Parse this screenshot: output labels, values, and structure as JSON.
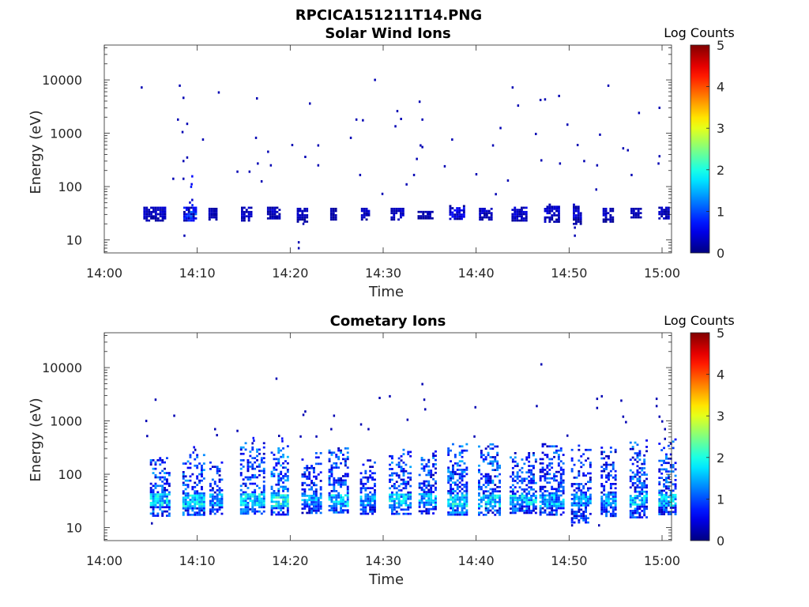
{
  "figure_title": "RPCICA151211T14.PNG",
  "colorbar": {
    "title": "Log Counts",
    "ticks": [
      "0",
      "1",
      "2",
      "3",
      "4",
      "5"
    ],
    "range": [
      0,
      5
    ],
    "colormap": "jet"
  },
  "chart_data": [
    {
      "type": "heatmap",
      "title": "Solar Wind Ions",
      "xlabel": "Time",
      "ylabel": "Energy (eV)",
      "xticks": [
        "14:00",
        "14:10",
        "14:20",
        "14:30",
        "14:40",
        "14:50",
        "15:00"
      ],
      "xlim_minutes": [
        0,
        60.5
      ],
      "yticks": [
        "10",
        "100",
        "1000",
        "10000"
      ],
      "ylim": [
        5.7,
        45000
      ],
      "yscale": "log",
      "grid": false,
      "bursts": [
        {
          "t": 4.2,
          "w": 2.4,
          "e_lo": 23,
          "e_hi": 42,
          "c": 0.3,
          "spread": 0.15,
          "tail": 0
        },
        {
          "t": 8.5,
          "w": 1.3,
          "e_lo": 23,
          "e_hi": 42,
          "c": 0.6,
          "spread": 0.6,
          "tail": 170
        },
        {
          "t": 11.2,
          "w": 0.9,
          "e_lo": 25,
          "e_hi": 40,
          "c": 0.25,
          "spread": 0.1,
          "tail": 0
        },
        {
          "t": 14.7,
          "w": 1.2,
          "e_lo": 24,
          "e_hi": 42,
          "c": 0.3,
          "spread": 0.15,
          "tail": 0
        },
        {
          "t": 17.5,
          "w": 1.4,
          "e_lo": 25,
          "e_hi": 42,
          "c": 0.3,
          "spread": 0.2,
          "tail": 0
        },
        {
          "t": 20.7,
          "w": 1.2,
          "e_lo": 22,
          "e_hi": 40,
          "c": 0.3,
          "spread": 0.1,
          "tail": 0
        },
        {
          "t": 24.3,
          "w": 0.6,
          "e_lo": 25,
          "e_hi": 40,
          "c": 0.2,
          "spread": 0.1,
          "tail": 0
        },
        {
          "t": 27.6,
          "w": 0.9,
          "e_lo": 24,
          "e_hi": 40,
          "c": 0.3,
          "spread": 0.15,
          "tail": 0
        },
        {
          "t": 30.8,
          "w": 1.4,
          "e_lo": 24,
          "e_hi": 40,
          "c": 0.3,
          "spread": 0.15,
          "tail": 0
        },
        {
          "t": 33.7,
          "w": 1.5,
          "e_lo": 25,
          "e_hi": 35,
          "c": 0.2,
          "spread": 0.1,
          "tail": 0
        },
        {
          "t": 37.1,
          "w": 1.6,
          "e_lo": 24,
          "e_hi": 45,
          "c": 0.45,
          "spread": 0.3,
          "tail": 0
        },
        {
          "t": 40.3,
          "w": 1.3,
          "e_lo": 24,
          "e_hi": 40,
          "c": 0.35,
          "spread": 0.2,
          "tail": 0
        },
        {
          "t": 43.8,
          "w": 1.5,
          "e_lo": 23,
          "e_hi": 42,
          "c": 0.35,
          "spread": 0.2,
          "tail": 0
        },
        {
          "t": 47.3,
          "w": 1.6,
          "e_lo": 22,
          "e_hi": 48,
          "c": 0.35,
          "spread": 0.2,
          "tail": 0
        },
        {
          "t": 50.4,
          "w": 0.8,
          "e_lo": 20,
          "e_hi": 48,
          "c": 0.35,
          "spread": 0.2,
          "tail": 0
        },
        {
          "t": 53.6,
          "w": 1.1,
          "e_lo": 22,
          "e_hi": 40,
          "c": 0.3,
          "spread": 0.15,
          "tail": 0
        },
        {
          "t": 56.6,
          "w": 1.0,
          "e_lo": 26,
          "e_hi": 40,
          "c": 0.25,
          "spread": 0.1,
          "tail": 0
        },
        {
          "t": 59.6,
          "w": 1.0,
          "e_lo": 26,
          "e_hi": 42,
          "c": 0.3,
          "spread": 0.15,
          "tail": 0
        }
      ],
      "dots": [
        [
          4.0,
          7200
        ],
        [
          8.1,
          7800
        ],
        [
          8.5,
          4600
        ],
        [
          7.9,
          1800
        ],
        [
          8.9,
          1500
        ],
        [
          8.4,
          1050
        ],
        [
          10.6,
          760
        ],
        [
          12.3,
          5800
        ],
        [
          8.9,
          350
        ],
        [
          8.5,
          300
        ],
        [
          7.4,
          140
        ],
        [
          8.5,
          140
        ],
        [
          14.3,
          190
        ],
        [
          16.4,
          4500
        ],
        [
          16.3,
          820
        ],
        [
          15.6,
          190
        ],
        [
          17.6,
          450
        ],
        [
          16.5,
          270
        ],
        [
          17.9,
          250
        ],
        [
          16.9,
          125
        ],
        [
          20.2,
          600
        ],
        [
          22.1,
          3600
        ],
        [
          21.6,
          360
        ],
        [
          23.0,
          590
        ],
        [
          23.0,
          250
        ],
        [
          26.5,
          820
        ],
        [
          27.1,
          1800
        ],
        [
          27.8,
          1750
        ],
        [
          27.5,
          165
        ],
        [
          29.1,
          10000
        ],
        [
          31.5,
          2600
        ],
        [
          31.9,
          1850
        ],
        [
          31.3,
          1350
        ],
        [
          33.9,
          3900
        ],
        [
          34.2,
          1800
        ],
        [
          33.6,
          330
        ],
        [
          34.0,
          590
        ],
        [
          34.2,
          550
        ],
        [
          37.4,
          760
        ],
        [
          33.3,
          165
        ],
        [
          32.5,
          110
        ],
        [
          29.9,
          73
        ],
        [
          36.6,
          240
        ],
        [
          40.0,
          170
        ],
        [
          41.8,
          590
        ],
        [
          43.9,
          7200
        ],
        [
          44.5,
          3300
        ],
        [
          42.6,
          1250
        ],
        [
          43.4,
          130
        ],
        [
          42.1,
          72
        ],
        [
          46.9,
          4200
        ],
        [
          47.4,
          4300
        ],
        [
          48.9,
          5000
        ],
        [
          46.4,
          970
        ],
        [
          47.0,
          310
        ],
        [
          49.0,
          270
        ],
        [
          49.8,
          1450
        ],
        [
          50.9,
          600
        ],
        [
          51.6,
          300
        ],
        [
          53.3,
          940
        ],
        [
          53.0,
          250
        ],
        [
          54.2,
          7800
        ],
        [
          57.5,
          2400
        ],
        [
          59.7,
          3000
        ],
        [
          59.7,
          370
        ],
        [
          59.6,
          270
        ],
        [
          56.7,
          165
        ],
        [
          56.3,
          480
        ],
        [
          55.8,
          520
        ],
        [
          52.9,
          88
        ],
        [
          20.9,
          7
        ],
        [
          20.9,
          9
        ],
        [
          21.4,
          20
        ],
        [
          8.6,
          12
        ],
        [
          50.6,
          12
        ],
        [
          50.6,
          17
        ]
      ]
    },
    {
      "type": "heatmap",
      "title": "Cometary Ions",
      "xlabel": "Time",
      "ylabel": "Energy (eV)",
      "xticks": [
        "14:00",
        "14:10",
        "14:20",
        "14:30",
        "14:40",
        "14:50",
        "15:00"
      ],
      "xlim_minutes": [
        0,
        60.5
      ],
      "yticks": [
        "10",
        "100",
        "1000",
        "10000"
      ],
      "ylim": [
        5.7,
        45000
      ],
      "yscale": "log",
      "grid": false,
      "bursts": [
        {
          "t": 4.9,
          "w": 2.2,
          "e_lo": 16,
          "e_hi": 210,
          "c": 1.55,
          "spread": 0.6,
          "tail": 0
        },
        {
          "t": 8.4,
          "w": 2.4,
          "e_lo": 17,
          "e_hi": 240,
          "c": 1.6,
          "spread": 0.6,
          "tail": 520
        },
        {
          "t": 11.3,
          "w": 1.3,
          "e_lo": 18,
          "e_hi": 190,
          "c": 1.3,
          "spread": 0.5,
          "tail": 0
        },
        {
          "t": 14.6,
          "w": 2.6,
          "e_lo": 18,
          "e_hi": 400,
          "c": 1.55,
          "spread": 0.6,
          "tail": 650
        },
        {
          "t": 17.9,
          "w": 1.8,
          "e_lo": 18,
          "e_hi": 350,
          "c": 1.8,
          "spread": 0.6,
          "tail": 600
        },
        {
          "t": 21.2,
          "w": 2.2,
          "e_lo": 18,
          "e_hi": 260,
          "c": 1.3,
          "spread": 0.5,
          "tail": 0
        },
        {
          "t": 24.1,
          "w": 2.0,
          "e_lo": 20,
          "e_hi": 320,
          "c": 1.55,
          "spread": 0.6,
          "tail": 0
        },
        {
          "t": 27.5,
          "w": 1.6,
          "e_lo": 18,
          "e_hi": 190,
          "c": 1.3,
          "spread": 0.5,
          "tail": 0
        },
        {
          "t": 30.6,
          "w": 2.4,
          "e_lo": 18,
          "e_hi": 300,
          "c": 1.55,
          "spread": 0.6,
          "tail": 0
        },
        {
          "t": 33.8,
          "w": 1.8,
          "e_lo": 18,
          "e_hi": 280,
          "c": 1.4,
          "spread": 0.6,
          "tail": 0
        },
        {
          "t": 36.9,
          "w": 2.2,
          "e_lo": 18,
          "e_hi": 420,
          "c": 1.7,
          "spread": 0.6,
          "tail": 0
        },
        {
          "t": 40.2,
          "w": 2.4,
          "e_lo": 18,
          "e_hi": 380,
          "c": 1.55,
          "spread": 0.6,
          "tail": 0
        },
        {
          "t": 43.6,
          "w": 2.8,
          "e_lo": 18,
          "e_hi": 260,
          "c": 1.55,
          "spread": 0.6,
          "tail": 0
        },
        {
          "t": 46.8,
          "w": 2.6,
          "e_lo": 18,
          "e_hi": 420,
          "c": 1.4,
          "spread": 0.6,
          "tail": 0
        },
        {
          "t": 50.2,
          "w": 2.0,
          "e_lo": 13,
          "e_hi": 360,
          "c": 1.3,
          "spread": 0.55,
          "tail": 0
        },
        {
          "t": 53.4,
          "w": 1.6,
          "e_lo": 16,
          "e_hi": 330,
          "c": 1.3,
          "spread": 0.55,
          "tail": 0
        },
        {
          "t": 56.5,
          "w": 1.8,
          "e_lo": 16,
          "e_hi": 450,
          "c": 1.55,
          "spread": 0.6,
          "tail": 0
        },
        {
          "t": 59.6,
          "w": 1.8,
          "e_lo": 18,
          "e_hi": 470,
          "c": 1.55,
          "spread": 0.6,
          "tail": 0
        }
      ],
      "dots": [
        [
          5.5,
          2500
        ],
        [
          4.5,
          1000
        ],
        [
          4.6,
          520
        ],
        [
          7.5,
          1250
        ],
        [
          11.9,
          700
        ],
        [
          12.1,
          540
        ],
        [
          14.3,
          650
        ],
        [
          18.5,
          6200
        ],
        [
          21.6,
          1500
        ],
        [
          21.4,
          1300
        ],
        [
          21.1,
          510
        ],
        [
          22.8,
          510
        ],
        [
          24.7,
          1250
        ],
        [
          24.4,
          700
        ],
        [
          27.6,
          860
        ],
        [
          28.4,
          700
        ],
        [
          29.6,
          2700
        ],
        [
          30.7,
          2900
        ],
        [
          32.6,
          1050
        ],
        [
          34.2,
          4900
        ],
        [
          34.4,
          2500
        ],
        [
          34.5,
          1650
        ],
        [
          39.9,
          1800
        ],
        [
          39.8,
          510
        ],
        [
          47.0,
          11500
        ],
        [
          46.5,
          1900
        ],
        [
          49.8,
          530
        ],
        [
          53.0,
          2600
        ],
        [
          53.5,
          2900
        ],
        [
          53.0,
          1750
        ],
        [
          55.6,
          2400
        ],
        [
          55.8,
          1200
        ],
        [
          56.1,
          950
        ],
        [
          59.4,
          2600
        ],
        [
          59.4,
          1900
        ],
        [
          59.7,
          1200
        ],
        [
          60.0,
          980
        ],
        [
          60.3,
          700
        ],
        [
          60.3,
          460
        ],
        [
          5.1,
          12
        ],
        [
          50.3,
          11
        ],
        [
          53.2,
          11
        ]
      ]
    }
  ]
}
